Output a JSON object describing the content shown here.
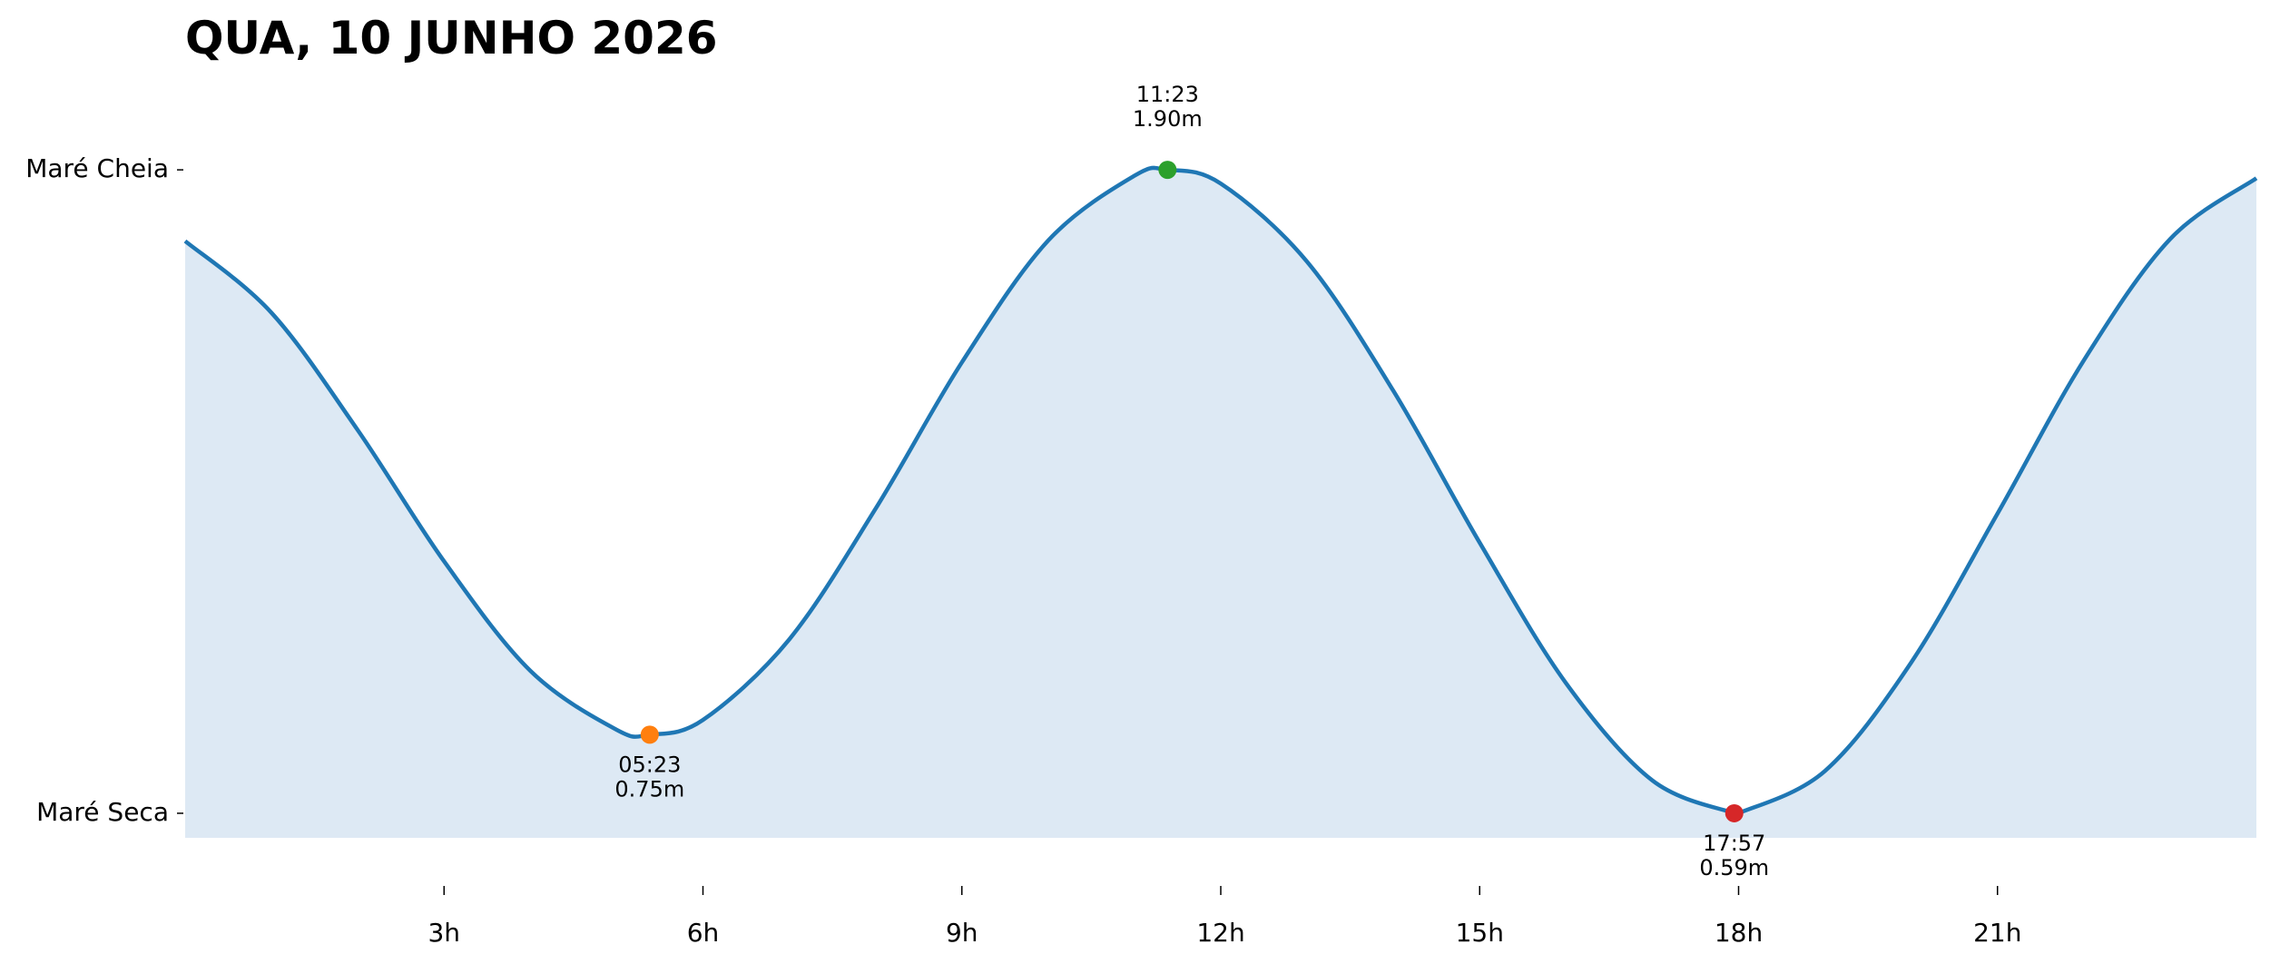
{
  "chart_data": {
    "type": "area",
    "title": "QUA, 10 JUNHO 2026",
    "x": [
      0,
      1,
      2,
      3,
      4,
      5,
      5.383,
      6,
      7,
      8,
      9,
      10,
      11,
      11.383,
      12,
      13,
      14,
      15,
      16,
      17,
      17.95,
      18,
      19,
      20,
      21,
      22,
      23,
      24
    ],
    "values": [
      1.755,
      1.609,
      1.37,
      1.103,
      0.88,
      0.76,
      0.75,
      0.78,
      0.944,
      1.21,
      1.508,
      1.756,
      1.888,
      1.9,
      1.872,
      1.713,
      1.45,
      1.141,
      0.855,
      0.657,
      0.59,
      0.59,
      0.676,
      0.897,
      1.2,
      1.512,
      1.759,
      1.883
    ],
    "color": "#1f77b4",
    "fill_color": "#dde9f4",
    "xlim": [
      0,
      24
    ],
    "ylim": [
      0.54,
      2.0
    ],
    "xticks": [
      {
        "value": 3,
        "label": "3h"
      },
      {
        "value": 6,
        "label": "6h"
      },
      {
        "value": 9,
        "label": "9h"
      },
      {
        "value": 12,
        "label": "12h"
      },
      {
        "value": 15,
        "label": "15h"
      },
      {
        "value": 18,
        "label": "18h"
      },
      {
        "value": 21,
        "label": "21h"
      }
    ],
    "yticks": [
      {
        "value": 1.9,
        "label": "Maré Cheia"
      },
      {
        "value": 0.59,
        "label": "Maré Seca"
      }
    ],
    "markers": {
      "x": [
        5.383,
        11.383,
        17.95
      ],
      "values": [
        0.75,
        1.9,
        0.59
      ],
      "time_labels": [
        "05:23",
        "11:23",
        "17:57"
      ],
      "value_labels": [
        "0.75m",
        "1.90m",
        "0.59m"
      ],
      "colors": [
        "#ff7f0e",
        "#2ca02c",
        "#d62728"
      ]
    }
  }
}
